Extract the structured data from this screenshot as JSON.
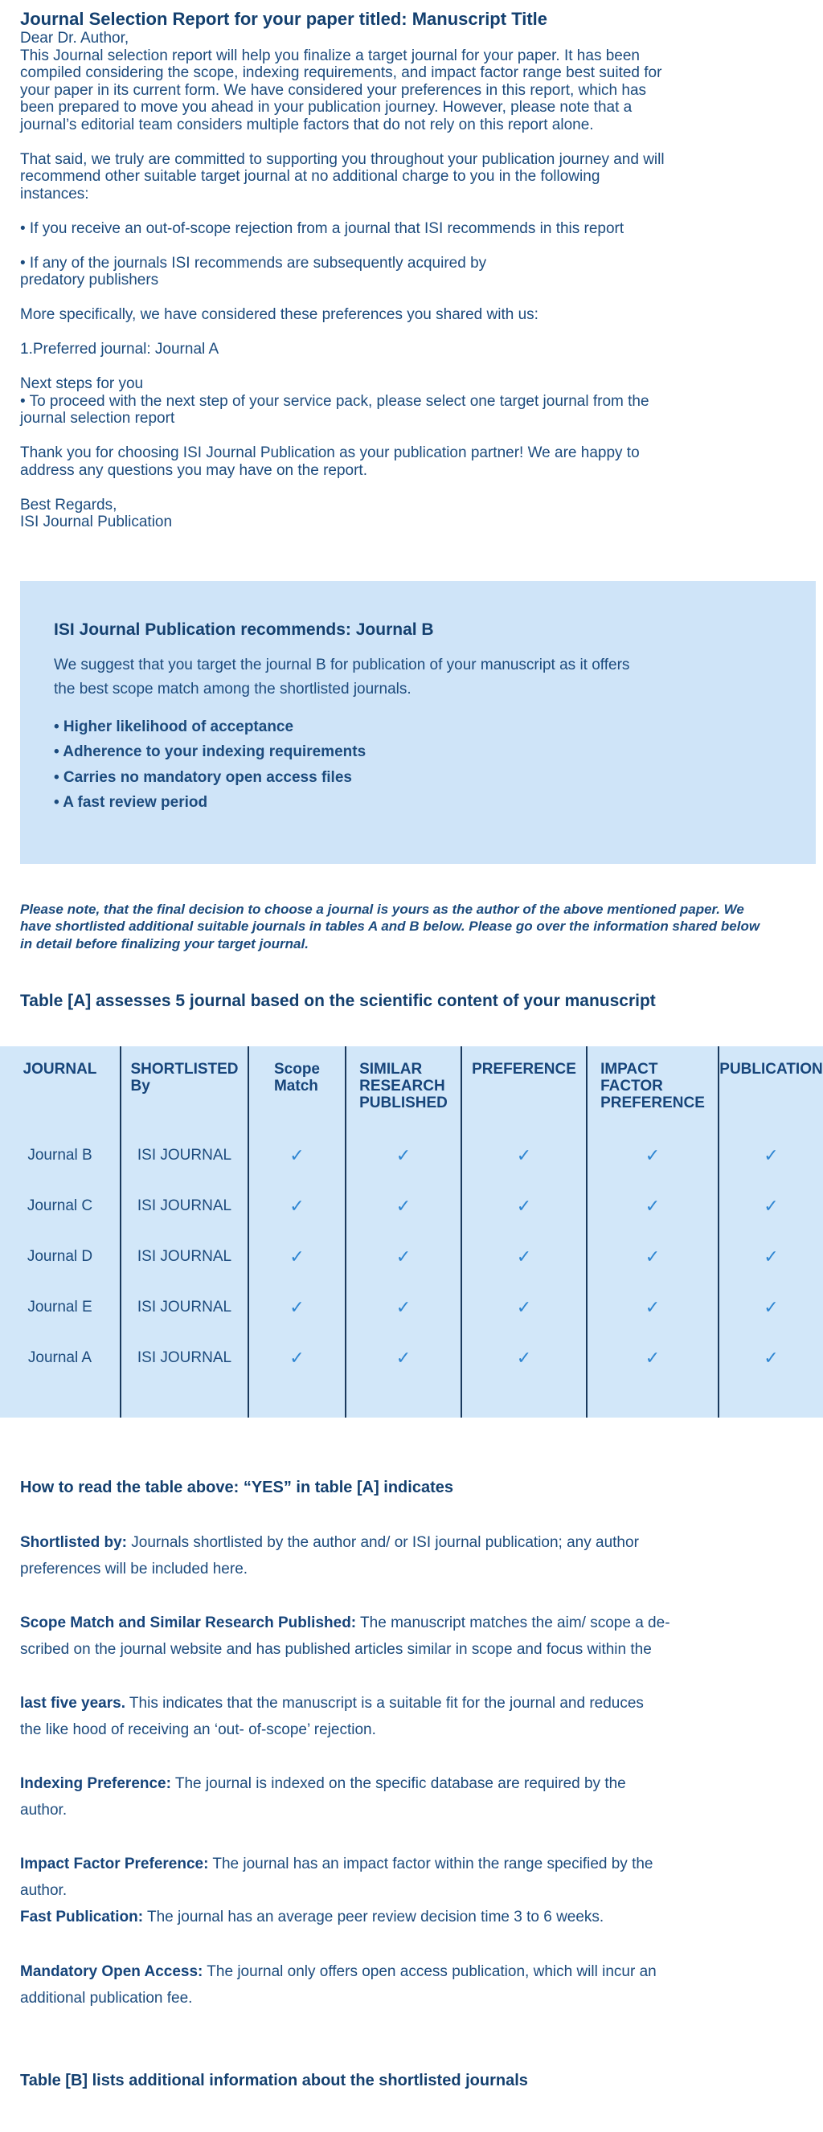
{
  "colors": {
    "body_text": "#1c4b7d",
    "heading_text": "#14406f",
    "box_background": "#cfe4f8",
    "table_background": "#d2e7f9",
    "table_border": "#1a3a5e",
    "check": "#2f86d2"
  },
  "letter": {
    "title": "Journal Selection Report for your paper titled: Manuscript Title",
    "paragraphs": [
      "Dear Dr. Author,\nThis Journal selection report will help you finalize a target journal for your paper. It has been\ncompiled considering the scope, indexing requirements, and impact factor range best suited for\nyour paper in its current form. We have considered your preferences in this report, which has\nbeen prepared to move you ahead in your publication journey. However, please note that a\njournal’s editorial team considers multiple factors that do not rely on this report alone.",
      "That said, we truly are committed to supporting you throughout your publication journey and will\nrecommend other suitable target journal at no additional charge to you in the following\ninstances:",
      "• If you receive an out-of-scope rejection from a journal that ISI recommends in this report",
      "• If any of the journals ISI recommends are subsequently acquired by\npredatory publishers",
      "More specifically, we have considered these preferences you shared with us:",
      "1.Preferred journal: Journal A",
      "Next steps for you\n• To proceed with the next step of your service pack, please select one target journal from the\njournal selection report",
      "Thank you for choosing ISI Journal Publication as your publication partner! We are happy to\naddress any questions you may have on the report.",
      "Best Regards,\nISI Journal Publication"
    ]
  },
  "recommendation_box": {
    "heading": "ISI Journal Publication recommends: Journal B",
    "body": "We suggest that you target the journal B for publication of your manuscript as it offers\nthe best scope match among the shortlisted journals.",
    "bullets": [
      "• Higher likelihood of acceptance",
      "• Adherence to your indexing requirements",
      "• Carries no mandatory open access files",
      "• A fast review period"
    ]
  },
  "note_italic": "Please note, that the final decision to choose a journal is yours as the author of the above mentioned paper. We\nhave shortlisted additional suitable journals in tables A and B below. Please go over the information shared below\nin detail before finalizing your target journal.",
  "table_a": {
    "heading": "Table [A] assesses 5 journal based on the scientific content of your manuscript",
    "columns": [
      "JOURNAL",
      "SHORTLISTED\nBy",
      "Scope\nMatch",
      "SIMILAR\nRESEARCH\nPUBLISHED",
      "PREFERENCE",
      "IMPACT\nFACTOR\nPREFERENCE",
      "PUBLICATION"
    ],
    "check_glyph": "✓",
    "rows": [
      {
        "journal": "Journal B",
        "shortlisted_by": "ISI JOURNAL"
      },
      {
        "journal": "Journal C",
        "shortlisted_by": "ISI JOURNAL"
      },
      {
        "journal": "Journal D",
        "shortlisted_by": "ISI JOURNAL"
      },
      {
        "journal": "Journal E",
        "shortlisted_by": "ISI JOURNAL"
      },
      {
        "journal": "Journal A",
        "shortlisted_by": "ISI JOURNAL"
      }
    ]
  },
  "how_to": {
    "heading": "How to read the table above: “YES” in table [A] indicates",
    "items": [
      {
        "label": "Shortlisted by:",
        "text": " Journals shortlisted by the author and/ or ISI journal publication; any author\npreferences will be included here."
      },
      {
        "label": "Scope Match and Similar Research Published:",
        "text": " The manuscript matches the aim/ scope a de-\nscribed on the journal website and has published articles similar in scope and focus within the"
      },
      {
        "label": "last five years.",
        "text": " This indicates that the manuscript is a suitable fit for the journal and reduces\nthe like hood of receiving an ‘out- of-scope’ rejection."
      },
      {
        "label": "Indexing Preference:",
        "text": " The journal is indexed on the specific database are required by the\nauthor."
      },
      {
        "label": "Impact Factor Preference:",
        "text": " The journal has an impact factor within the range specified by the\nauthor."
      },
      {
        "label": "Fast Publication:",
        "text": " The journal has an average peer review decision time 3 to 6 weeks."
      },
      {
        "label": "Mandatory Open Access:",
        "text": " The journal only offers open access publication, which will incur an\nadditional publication fee."
      }
    ]
  },
  "table_b_heading": "Table [B] lists additional information about the shortlisted journals"
}
